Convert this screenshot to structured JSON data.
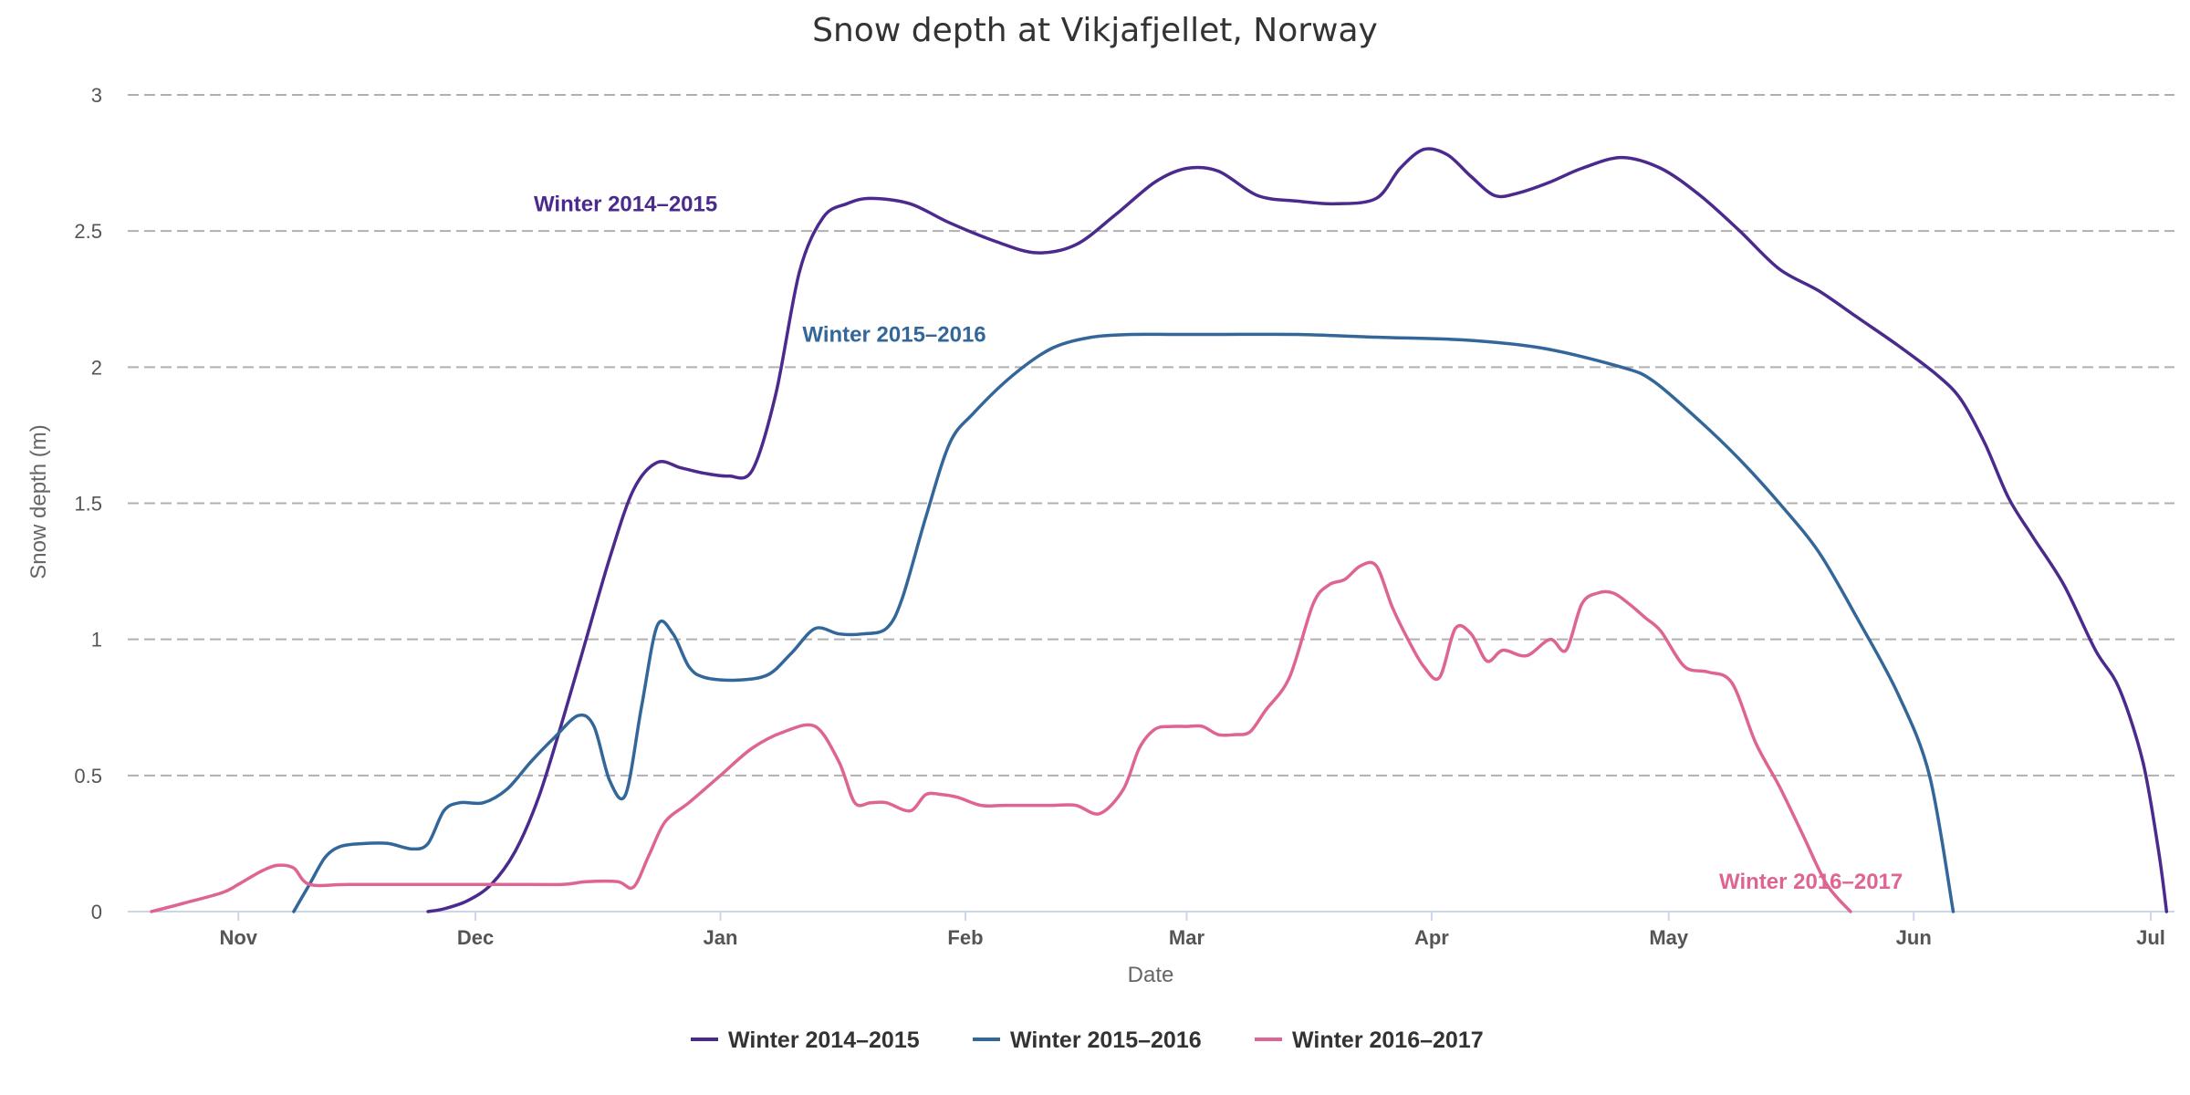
{
  "chart_data": {
    "type": "line",
    "title": "Snow depth at Vikjafjellet, Norway",
    "xlabel": "Date",
    "ylabel": "Snow depth (m)",
    "x_ticks": [
      "Nov",
      "Dec",
      "Jan",
      "Feb",
      "Mar",
      "Apr",
      "May",
      "Jun",
      "Jul"
    ],
    "y_ticks": [
      "0",
      "0.5",
      "1",
      "1.5",
      "2",
      "2.5",
      "3"
    ],
    "ylim": [
      0,
      3
    ],
    "xlim": [
      "Oct 18",
      "Jul 04"
    ],
    "grid": "horizontal dashed",
    "legend": "bottom-center",
    "series": [
      {
        "name": "Winter 2014–2015",
        "color": "#4b2a8e",
        "x": [
          "Nov 25",
          "Nov 27",
          "Nov 30",
          "Dec 03",
          "Dec 06",
          "Dec 09",
          "Dec 12",
          "Dec 15",
          "Dec 18",
          "Dec 21",
          "Dec 24",
          "Dec 27",
          "Dec 30",
          "Jan 02",
          "Jan 05",
          "Jan 08",
          "Jan 11",
          "Jan 14",
          "Jan 17",
          "Jan 20",
          "Jan 25",
          "Jan 30",
          "Feb 05",
          "Feb 10",
          "Feb 15",
          "Feb 20",
          "Feb 25",
          "Mar 01",
          "Mar 05",
          "Mar 10",
          "Mar 15",
          "Mar 20",
          "Mar 25",
          "Mar 28",
          "Mar 31",
          "Apr 03",
          "Apr 06",
          "Apr 09",
          "Apr 12",
          "Apr 16",
          "Apr 20",
          "Apr 25",
          "Apr 30",
          "May 05",
          "May 10",
          "May 15",
          "May 20",
          "May 25",
          "May 30",
          "Jun 04",
          "Jun 07",
          "Jun 10",
          "Jun 13",
          "Jun 16",
          "Jun 20",
          "Jun 24",
          "Jun 27",
          "Jun 30",
          "Jul 02",
          "Jul 03"
        ],
        "values": [
          0,
          0.01,
          0.04,
          0.1,
          0.22,
          0.42,
          0.7,
          1.0,
          1.3,
          1.55,
          1.65,
          1.63,
          1.61,
          1.6,
          1.62,
          1.9,
          2.35,
          2.55,
          2.6,
          2.62,
          2.6,
          2.53,
          2.46,
          2.42,
          2.45,
          2.56,
          2.68,
          2.73,
          2.72,
          2.63,
          2.61,
          2.6,
          2.62,
          2.73,
          2.8,
          2.78,
          2.7,
          2.63,
          2.64,
          2.68,
          2.73,
          2.77,
          2.73,
          2.63,
          2.5,
          2.36,
          2.28,
          2.18,
          2.08,
          1.97,
          1.88,
          1.72,
          1.52,
          1.38,
          1.2,
          0.96,
          0.82,
          0.55,
          0.22,
          0
        ]
      },
      {
        "name": "Winter 2015–2016",
        "color": "#336699",
        "x": [
          "Nov 08",
          "Nov 10",
          "Nov 12",
          "Nov 14",
          "Nov 17",
          "Nov 20",
          "Nov 23",
          "Nov 25",
          "Nov 27",
          "Nov 29",
          "Dec 02",
          "Dec 05",
          "Dec 08",
          "Dec 11",
          "Dec 14",
          "Dec 16",
          "Dec 18",
          "Dec 20",
          "Dec 22",
          "Dec 24",
          "Dec 26",
          "Dec 28",
          "Dec 30",
          "Jan 03",
          "Jan 07",
          "Jan 10",
          "Jan 13",
          "Jan 16",
          "Jan 19",
          "Jan 22",
          "Jan 24",
          "Jan 27",
          "Jan 30",
          "Feb 02",
          "Feb 07",
          "Feb 12",
          "Feb 17",
          "Feb 22",
          "Feb 27",
          "Mar 05",
          "Mar 15",
          "Mar 25",
          "Apr 05",
          "Apr 15",
          "Apr 25",
          "Apr 29",
          "May 05",
          "May 10",
          "May 15",
          "May 20",
          "May 25",
          "May 30",
          "Jun 03",
          "Jun 06"
        ],
        "values": [
          0,
          0.1,
          0.2,
          0.24,
          0.25,
          0.25,
          0.23,
          0.25,
          0.37,
          0.4,
          0.4,
          0.45,
          0.55,
          0.64,
          0.72,
          0.68,
          0.48,
          0.43,
          0.75,
          1.05,
          1.02,
          0.9,
          0.86,
          0.85,
          0.87,
          0.95,
          1.04,
          1.02,
          1.02,
          1.04,
          1.15,
          1.45,
          1.72,
          1.83,
          1.97,
          2.07,
          2.11,
          2.12,
          2.12,
          2.12,
          2.12,
          2.11,
          2.1,
          2.07,
          2.0,
          1.95,
          1.8,
          1.66,
          1.5,
          1.32,
          1.07,
          0.8,
          0.5,
          0
        ]
      },
      {
        "name": "Winter 2016–2017",
        "color": "#de6493",
        "x": [
          "Oct 21",
          "Oct 25",
          "Oct 30",
          "Nov 01",
          "Nov 04",
          "Nov 06",
          "Nov 08",
          "Nov 10",
          "Nov 15",
          "Nov 25",
          "Dec 05",
          "Dec 12",
          "Dec 15",
          "Dec 19",
          "Dec 21",
          "Dec 23",
          "Dec 25",
          "Dec 28",
          "Jan 01",
          "Jan 05",
          "Jan 09",
          "Jan 13",
          "Jan 16",
          "Jan 18",
          "Jan 20",
          "Jan 22",
          "Jan 25",
          "Jan 27",
          "Jan 29",
          "Jan 31",
          "Feb 03",
          "Feb 06",
          "Feb 09",
          "Feb 12",
          "Feb 15",
          "Feb 18",
          "Feb 21",
          "Feb 23",
          "Feb 25",
          "Feb 27",
          "Mar 01",
          "Mar 03",
          "Mar 05",
          "Mar 07",
          "Mar 09",
          "Mar 11",
          "Mar 14",
          "Mar 17",
          "Mar 19",
          "Mar 21",
          "Mar 23",
          "Mar 25",
          "Mar 27",
          "Mar 29",
          "Mar 31",
          "Apr 02",
          "Apr 04",
          "Apr 06",
          "Apr 08",
          "Apr 10",
          "Apr 13",
          "Apr 16",
          "Apr 18",
          "Apr 20",
          "Apr 22",
          "Apr 24",
          "Apr 26",
          "Apr 28",
          "Apr 30",
          "May 03",
          "May 06",
          "May 09",
          "May 12",
          "May 15",
          "May 18",
          "May 21",
          "May 24"
        ],
        "values": [
          0,
          0.03,
          0.07,
          0.1,
          0.15,
          0.17,
          0.16,
          0.1,
          0.1,
          0.1,
          0.1,
          0.1,
          0.11,
          0.11,
          0.09,
          0.21,
          0.33,
          0.4,
          0.5,
          0.6,
          0.66,
          0.68,
          0.55,
          0.4,
          0.4,
          0.4,
          0.37,
          0.43,
          0.43,
          0.42,
          0.39,
          0.39,
          0.39,
          0.39,
          0.39,
          0.36,
          0.45,
          0.6,
          0.67,
          0.68,
          0.68,
          0.68,
          0.65,
          0.65,
          0.66,
          0.74,
          0.86,
          1.13,
          1.2,
          1.22,
          1.27,
          1.27,
          1.12,
          1.0,
          0.9,
          0.86,
          1.04,
          1.02,
          0.92,
          0.96,
          0.94,
          1.0,
          0.96,
          1.13,
          1.17,
          1.17,
          1.13,
          1.08,
          1.03,
          0.9,
          0.88,
          0.84,
          0.62,
          0.46,
          0.28,
          0.1,
          0
        ]
      }
    ],
    "annotations": [
      {
        "text": "Winter 2014–2015",
        "series": 0,
        "x": "Dec 20",
        "y": 2.6
      },
      {
        "text": "Winter 2015–2016",
        "series": 1,
        "x": "Jan 23",
        "y": 2.12
      },
      {
        "text": "Winter 2016–2017",
        "series": 2,
        "x": "May 19",
        "y": 0.11
      }
    ]
  }
}
